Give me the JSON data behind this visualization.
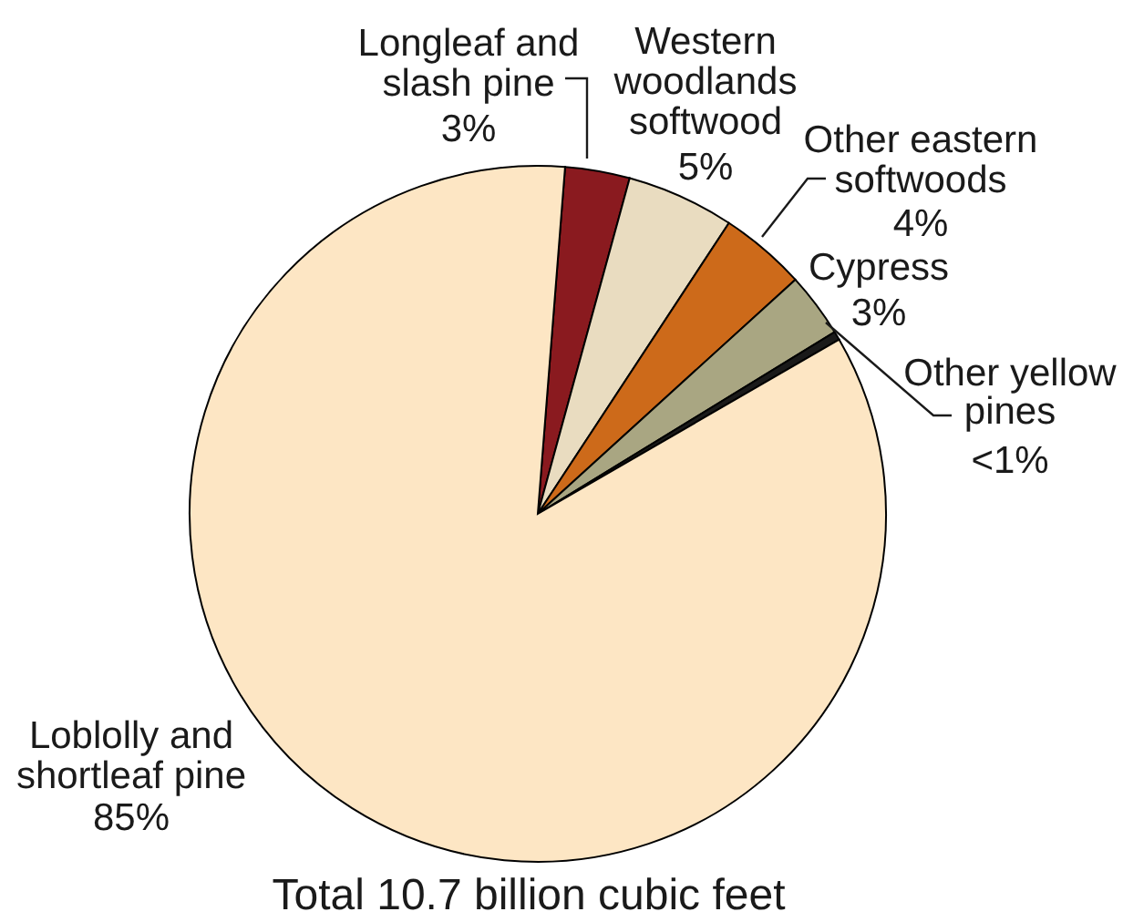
{
  "chart_data": {
    "type": "pie",
    "categories": [
      "Longleaf and slash pine",
      "Western woodlands softwood",
      "Other eastern softwoods",
      "Cypress",
      "Other yellow pines",
      "Loblolly and shortleaf pine"
    ],
    "values": [
      3,
      5,
      4,
      3,
      0.4,
      84.6
    ],
    "value_labels": [
      "3%",
      "5%",
      "4%",
      "3%",
      "<1%",
      "85%"
    ],
    "colors": [
      "#8a1a1f",
      "#e9dcc0",
      "#cd6a1a",
      "#a9a682",
      "#1a1a1a",
      "#fde6c4"
    ],
    "annotations": [
      "Total 10.7 billion cubic feet"
    ]
  }
}
